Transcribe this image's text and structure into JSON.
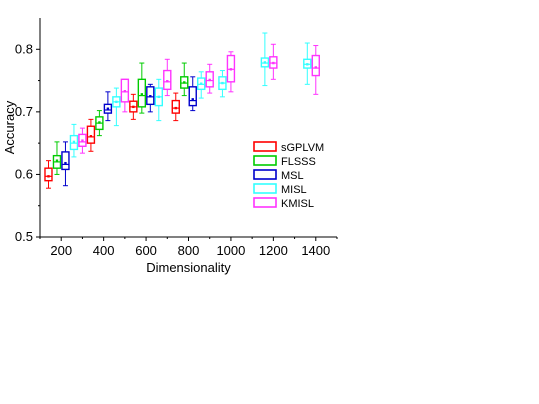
{
  "chart_data": {
    "type": "box",
    "title": "",
    "xlabel": "Dimensionality",
    "ylabel": "Accuracy",
    "xlim": [
      100,
      1500
    ],
    "ylim": [
      0.5,
      0.85
    ],
    "xticks": [
      200,
      400,
      600,
      800,
      1000,
      1200,
      1400
    ],
    "yticks": [
      0.5,
      0.6,
      0.7,
      0.8
    ],
    "ytick_labels": [
      "0.5",
      "0.6",
      "0.7",
      "0.8"
    ],
    "legend_position": "right",
    "series": [
      {
        "name": "sGPLVM",
        "color": "#ff0000",
        "boxes": [
          {
            "x": 140,
            "min": 0.578,
            "q1": 0.59,
            "median": 0.597,
            "q3": 0.61,
            "max": 0.622,
            "mean": 0.597
          },
          {
            "x": 340,
            "min": 0.637,
            "q1": 0.65,
            "median": 0.66,
            "q3": 0.677,
            "max": 0.688,
            "mean": 0.661
          },
          {
            "x": 540,
            "min": 0.688,
            "q1": 0.7,
            "median": 0.708,
            "q3": 0.717,
            "max": 0.728,
            "mean": 0.708
          },
          {
            "x": 740,
            "min": 0.686,
            "q1": 0.698,
            "median": 0.706,
            "q3": 0.718,
            "max": 0.73,
            "mean": 0.706
          }
        ]
      },
      {
        "name": "FLSSS",
        "color": "#00cc00",
        "boxes": [
          {
            "x": 180,
            "min": 0.6,
            "q1": 0.61,
            "median": 0.62,
            "q3": 0.63,
            "max": 0.652,
            "mean": 0.622
          },
          {
            "x": 380,
            "min": 0.662,
            "q1": 0.672,
            "median": 0.682,
            "q3": 0.692,
            "max": 0.702,
            "mean": 0.683
          },
          {
            "x": 580,
            "min": 0.698,
            "q1": 0.708,
            "median": 0.726,
            "q3": 0.752,
            "max": 0.778,
            "mean": 0.728
          },
          {
            "x": 780,
            "min": 0.726,
            "q1": 0.738,
            "median": 0.746,
            "q3": 0.756,
            "max": 0.778,
            "mean": 0.747
          }
        ]
      },
      {
        "name": "MSL",
        "color": "#0000cc",
        "boxes": [
          {
            "x": 220,
            "min": 0.582,
            "q1": 0.608,
            "median": 0.616,
            "q3": 0.636,
            "max": 0.652,
            "mean": 0.618
          },
          {
            "x": 420,
            "min": 0.686,
            "q1": 0.698,
            "median": 0.703,
            "q3": 0.712,
            "max": 0.732,
            "mean": 0.705
          },
          {
            "x": 620,
            "min": 0.7,
            "q1": 0.712,
            "median": 0.724,
            "q3": 0.74,
            "max": 0.744,
            "mean": 0.725
          },
          {
            "x": 820,
            "min": 0.702,
            "q1": 0.71,
            "median": 0.718,
            "q3": 0.74,
            "max": 0.756,
            "mean": 0.72
          }
        ]
      },
      {
        "name": "MISL",
        "color": "#33ffff",
        "boxes": [
          {
            "x": 260,
            "min": 0.628,
            "q1": 0.64,
            "median": 0.65,
            "q3": 0.662,
            "max": 0.68,
            "mean": 0.652
          },
          {
            "x": 460,
            "min": 0.678,
            "q1": 0.708,
            "median": 0.716,
            "q3": 0.724,
            "max": 0.738,
            "mean": 0.716
          },
          {
            "x": 660,
            "min": 0.686,
            "q1": 0.71,
            "median": 0.724,
            "q3": 0.738,
            "max": 0.752,
            "mean": 0.724
          },
          {
            "x": 860,
            "min": 0.722,
            "q1": 0.736,
            "median": 0.744,
            "q3": 0.754,
            "max": 0.764,
            "mean": 0.745
          },
          {
            "x": 960,
            "min": 0.724,
            "q1": 0.736,
            "median": 0.746,
            "q3": 0.756,
            "max": 0.766,
            "mean": 0.746
          },
          {
            "x": 1160,
            "min": 0.742,
            "q1": 0.772,
            "median": 0.778,
            "q3": 0.786,
            "max": 0.826,
            "mean": 0.779
          },
          {
            "x": 1360,
            "min": 0.744,
            "q1": 0.77,
            "median": 0.776,
            "q3": 0.784,
            "max": 0.81,
            "mean": 0.776
          }
        ]
      },
      {
        "name": "KMISL",
        "color": "#ff33ff",
        "boxes": [
          {
            "x": 300,
            "min": 0.634,
            "q1": 0.645,
            "median": 0.652,
            "q3": 0.664,
            "max": 0.674,
            "mean": 0.654
          },
          {
            "x": 500,
            "min": 0.7,
            "q1": 0.716,
            "median": 0.732,
            "q3": 0.752,
            "max": 0.752,
            "mean": 0.733
          },
          {
            "x": 700,
            "min": 0.726,
            "q1": 0.736,
            "median": 0.748,
            "q3": 0.766,
            "max": 0.784,
            "mean": 0.749
          },
          {
            "x": 900,
            "min": 0.73,
            "q1": 0.74,
            "median": 0.75,
            "q3": 0.764,
            "max": 0.776,
            "mean": 0.751
          },
          {
            "x": 1000,
            "min": 0.732,
            "q1": 0.748,
            "median": 0.768,
            "q3": 0.79,
            "max": 0.796,
            "mean": 0.768
          },
          {
            "x": 1200,
            "min": 0.752,
            "q1": 0.77,
            "median": 0.778,
            "q3": 0.788,
            "max": 0.808,
            "mean": 0.778
          },
          {
            "x": 1400,
            "min": 0.728,
            "q1": 0.758,
            "median": 0.77,
            "q3": 0.79,
            "max": 0.806,
            "mean": 0.771
          }
        ]
      }
    ]
  }
}
